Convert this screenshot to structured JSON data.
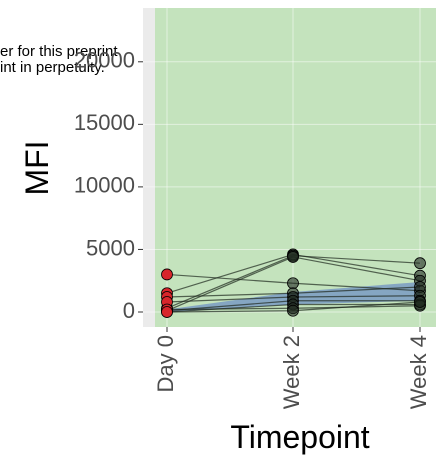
{
  "chart_data": {
    "type": "line",
    "x_label": "Timepoint",
    "y_label": "MFI",
    "annotations": [
      "er for this preprint",
      "int in perpetuity."
    ],
    "categories": [
      "Day 0",
      "Week 2",
      "Week 4"
    ],
    "point_colors": [
      "#d7262b",
      "#1f2a1f",
      "#1f2a1f"
    ],
    "line_color": "#1f2a1f",
    "band": {
      "color": "#3a5cc8",
      "lower": [
        0,
        600,
        900
      ],
      "upper": [
        200,
        1600,
        2400
      ]
    },
    "highlight_color": "#c4e3bd",
    "series": [
      {
        "values": [
          3000,
          2300,
          1700
        ]
      },
      {
        "values": [
          1500,
          4600,
          2900
        ]
      },
      {
        "values": [
          300,
          4500,
          3900
        ]
      },
      {
        "values": [
          100,
          4400,
          2500
        ]
      },
      {
        "values": [
          1200,
          1500,
          2000
        ]
      },
      {
        "values": [
          800,
          1200,
          1300
        ]
      },
      {
        "values": [
          100,
          900,
          900
        ]
      },
      {
        "values": [
          0,
          600,
          600
        ]
      },
      {
        "values": [
          200,
          300,
          500
        ]
      },
      {
        "values": [
          0,
          100,
          800
        ]
      }
    ],
    "ylim": [
      -1200,
      24300
    ],
    "yticks": [
      0,
      5000,
      10000,
      15000,
      20000
    ],
    "grid": true
  }
}
